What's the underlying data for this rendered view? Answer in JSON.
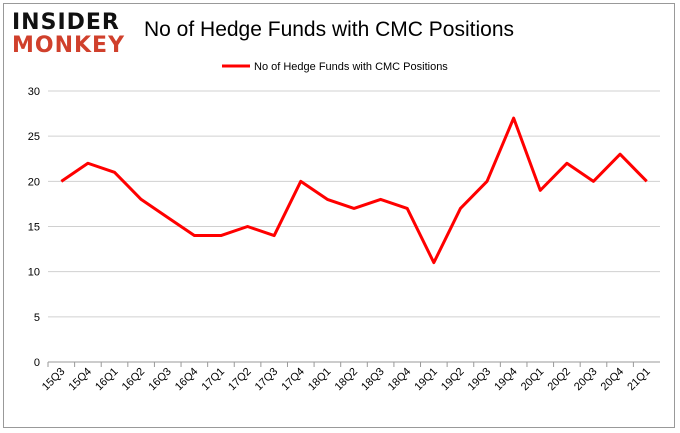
{
  "logo": {
    "line1": "INSIDER",
    "line2": "MONKEY"
  },
  "chart_data": {
    "type": "line",
    "title": "No of Hedge Funds with CMC Positions",
    "xlabel": "",
    "ylabel": "",
    "categories": [
      "15Q3",
      "15Q4",
      "16Q1",
      "16Q2",
      "16Q3",
      "16Q4",
      "17Q1",
      "17Q2",
      "17Q3",
      "17Q4",
      "18Q1",
      "18Q2",
      "18Q3",
      "18Q4",
      "19Q1",
      "19Q2",
      "19Q3",
      "19Q4",
      "20Q1",
      "20Q2",
      "20Q3",
      "20Q4",
      "21Q1"
    ],
    "series": [
      {
        "name": "No of Hedge Funds with CMC Positions",
        "color": "#ff0000",
        "values": [
          20,
          22,
          21,
          18,
          16,
          14,
          14,
          15,
          14,
          20,
          18,
          17,
          18,
          17,
          11,
          17,
          20,
          27,
          19,
          22,
          20,
          23,
          20
        ]
      }
    ],
    "ylim": [
      0,
      30
    ],
    "yticks": [
      0,
      5,
      10,
      15,
      20,
      25,
      30
    ],
    "grid": true,
    "legend": "top-center"
  }
}
